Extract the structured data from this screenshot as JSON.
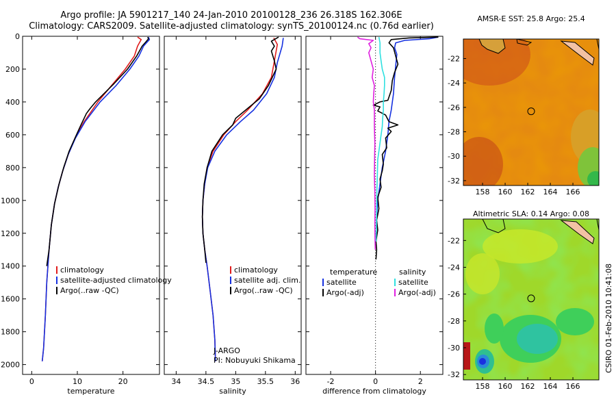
{
  "title": {
    "line1": "Argo profile: JA 5901217_140 24-Jan-2010 20100128_236 26.318S 162.306E",
    "line2": "Climatology: CARS2009. Satellite-adjusted climatology: synTS_20100124.nc (0.76d earlier)"
  },
  "side_label": "CSIRO 01-Feb-2010 10:41:08",
  "colors": {
    "clim": "#e01b1b",
    "sat": "#1530e0",
    "argo": "#000000",
    "sat_s": "#2fe0e0",
    "argo_s": "#e020e0"
  },
  "chart_data": [
    {
      "type": "line",
      "id": "temperature",
      "xlabel": "temperature",
      "xlim": [
        -2,
        28
      ],
      "xticks": [
        0,
        10,
        20
      ],
      "ylim": [
        2060,
        0
      ],
      "yticks": [
        0,
        200,
        400,
        600,
        800,
        1000,
        1200,
        1400,
        1600,
        1800,
        2000
      ],
      "legend": [
        "climatology",
        "satellite-adjusted climatology",
        "Argo(..raw -QC)"
      ],
      "series": [
        {
          "name": "climatology",
          "color": "#e01b1b",
          "points": [
            [
              23.2,
              5
            ],
            [
              24.0,
              20
            ],
            [
              23.2,
              60
            ],
            [
              22.5,
              120
            ],
            [
              20.5,
              200
            ],
            [
              17.5,
              300
            ],
            [
              14.5,
              400
            ],
            [
              11.5,
              520
            ],
            [
              9.5,
              620
            ],
            [
              8.0,
              720
            ],
            [
              6.8,
              820
            ],
            [
              5.8,
              920
            ],
            [
              5.0,
              1020
            ],
            [
              4.3,
              1150
            ],
            [
              3.8,
              1300
            ],
            [
              3.3,
              1500
            ],
            [
              3.0,
              1700
            ],
            [
              2.6,
              1900
            ],
            [
              2.3,
              1980
            ]
          ]
        },
        {
          "name": "satellite-adjusted climatology",
          "color": "#1530e0",
          "points": [
            [
              25.6,
              5
            ],
            [
              25.8,
              20
            ],
            [
              24.5,
              60
            ],
            [
              23.5,
              120
            ],
            [
              21.5,
              200
            ],
            [
              18.5,
              300
            ],
            [
              15.0,
              400
            ],
            [
              11.7,
              520
            ],
            [
              9.6,
              620
            ],
            [
              8.0,
              720
            ],
            [
              6.8,
              820
            ],
            [
              5.8,
              920
            ],
            [
              5.0,
              1020
            ],
            [
              4.3,
              1150
            ],
            [
              3.8,
              1300
            ],
            [
              3.3,
              1500
            ],
            [
              3.0,
              1700
            ],
            [
              2.6,
              1900
            ],
            [
              2.3,
              1980
            ]
          ]
        },
        {
          "name": "Argo(..raw -QC)",
          "color": "#000000",
          "points": [
            [
              25.4,
              5
            ],
            [
              25.6,
              15
            ],
            [
              25.0,
              35
            ],
            [
              24.2,
              60
            ],
            [
              23.0,
              120
            ],
            [
              21.0,
              200
            ],
            [
              18.0,
              290
            ],
            [
              14.0,
              400
            ],
            [
              12.8,
              440
            ],
            [
              12.0,
              470
            ],
            [
              10.8,
              540
            ],
            [
              9.8,
              600
            ],
            [
              8.2,
              700
            ],
            [
              7.0,
              800
            ],
            [
              6.0,
              900
            ],
            [
              5.0,
              1020
            ],
            [
              4.3,
              1150
            ],
            [
              3.8,
              1300
            ],
            [
              3.3,
              1400
            ]
          ]
        }
      ]
    },
    {
      "type": "line",
      "id": "salinity",
      "xlabel": "salinity",
      "xlim": [
        33.8,
        36.1
      ],
      "xticks": [
        34,
        34.5,
        35,
        35.5,
        36
      ],
      "ylim": [
        2060,
        0
      ],
      "legend": [
        "climatology",
        "satellite adj. clim.",
        "Argo(..raw -QC)"
      ],
      "annotation": [
        "J-ARGO",
        "PI: Nobuyuki Shikama"
      ],
      "series": [
        {
          "name": "climatology",
          "color": "#e01b1b",
          "points": [
            [
              35.64,
              10
            ],
            [
              35.7,
              50
            ],
            [
              35.65,
              150
            ],
            [
              35.6,
              250
            ],
            [
              35.45,
              350
            ],
            [
              35.2,
              450
            ],
            [
              35.0,
              520
            ],
            [
              34.8,
              600
            ],
            [
              34.62,
              700
            ],
            [
              34.52,
              800
            ],
            [
              34.48,
              900
            ],
            [
              34.45,
              1000
            ],
            [
              34.44,
              1100
            ],
            [
              34.45,
              1200
            ],
            [
              34.48,
              1300
            ],
            [
              34.52,
              1400
            ],
            [
              34.57,
              1550
            ],
            [
              34.62,
              1700
            ],
            [
              34.65,
              1850
            ],
            [
              34.66,
              1980
            ]
          ]
        },
        {
          "name": "satellite adj. clim.",
          "color": "#1530e0",
          "points": [
            [
              35.8,
              10
            ],
            [
              35.78,
              60
            ],
            [
              35.7,
              160
            ],
            [
              35.65,
              250
            ],
            [
              35.52,
              350
            ],
            [
              35.3,
              450
            ],
            [
              35.08,
              520
            ],
            [
              34.85,
              600
            ],
            [
              34.65,
              700
            ],
            [
              34.53,
              800
            ],
            [
              34.48,
              900
            ],
            [
              34.45,
              1000
            ],
            [
              34.44,
              1100
            ],
            [
              34.45,
              1200
            ],
            [
              34.48,
              1300
            ],
            [
              34.52,
              1400
            ],
            [
              34.57,
              1550
            ],
            [
              34.62,
              1700
            ],
            [
              34.65,
              1850
            ],
            [
              34.66,
              1980
            ]
          ]
        },
        {
          "name": "Argo(..raw -QC)",
          "color": "#000000",
          "points": [
            [
              35.72,
              5
            ],
            [
              35.6,
              30
            ],
            [
              35.65,
              60
            ],
            [
              35.6,
              90
            ],
            [
              35.65,
              150
            ],
            [
              35.68,
              200
            ],
            [
              35.55,
              300
            ],
            [
              35.4,
              380
            ],
            [
              35.2,
              440
            ],
            [
              35.0,
              500
            ],
            [
              34.95,
              540
            ],
            [
              34.78,
              600
            ],
            [
              34.6,
              700
            ],
            [
              34.52,
              800
            ],
            [
              34.47,
              900
            ],
            [
              34.45,
              1000
            ],
            [
              34.44,
              1100
            ],
            [
              34.45,
              1200
            ],
            [
              34.48,
              1300
            ],
            [
              34.5,
              1380
            ]
          ]
        }
      ]
    },
    {
      "type": "line",
      "id": "difference",
      "xlabel": "difference from climatology",
      "xlim": [
        -3.1,
        3.0
      ],
      "xticks": [
        -2,
        0,
        2
      ],
      "ylim": [
        2060,
        0
      ],
      "legend_temperature": {
        "heading": "temperature",
        "items": [
          "satellite",
          "Argo(-adj)"
        ]
      },
      "legend_salinity": {
        "heading": "salinity",
        "items": [
          "satellite",
          "Argo(-adj)"
        ]
      },
      "series": [
        {
          "name": "temperature satellite",
          "color": "#1530e0",
          "points": [
            [
              2.8,
              5
            ],
            [
              2.4,
              15
            ],
            [
              1.3,
              25
            ],
            [
              0.9,
              40
            ],
            [
              0.85,
              70
            ],
            [
              0.95,
              110
            ],
            [
              0.9,
              180
            ],
            [
              0.85,
              250
            ],
            [
              0.8,
              350
            ],
            [
              0.7,
              450
            ],
            [
              0.6,
              520
            ],
            [
              0.55,
              600
            ],
            [
              0.45,
              700
            ],
            [
              0.3,
              800
            ],
            [
              0.2,
              900
            ],
            [
              0.1,
              1000
            ],
            [
              0.05,
              1100
            ],
            [
              0.02,
              1250
            ]
          ]
        },
        {
          "name": "temperature Argo(-adj)",
          "color": "#000000",
          "points": [
            [
              2.8,
              5
            ],
            [
              1.5,
              10
            ],
            [
              0.7,
              20
            ],
            [
              0.6,
              40
            ],
            [
              0.8,
              70
            ],
            [
              0.9,
              120
            ],
            [
              1.0,
              170
            ],
            [
              0.85,
              220
            ],
            [
              0.75,
              270
            ],
            [
              0.7,
              330
            ],
            [
              0.55,
              390
            ],
            [
              0.2,
              400
            ],
            [
              -0.1,
              420
            ],
            [
              0.2,
              430
            ],
            [
              0.1,
              455
            ],
            [
              0.45,
              480
            ],
            [
              0.6,
              520
            ],
            [
              1.0,
              540
            ],
            [
              0.55,
              560
            ],
            [
              0.7,
              580
            ],
            [
              0.45,
              620
            ],
            [
              0.5,
              680
            ],
            [
              0.3,
              720
            ],
            [
              0.35,
              780
            ],
            [
              0.3,
              820
            ],
            [
              0.2,
              870
            ],
            [
              0.25,
              920
            ],
            [
              0.1,
              980
            ],
            [
              0.15,
              1050
            ],
            [
              0.05,
              1120
            ],
            [
              0.1,
              1180
            ],
            [
              0.02,
              1250
            ],
            [
              0.05,
              1300
            ],
            [
              0.02,
              1360
            ]
          ]
        },
        {
          "name": "salinity satellite",
          "color": "#2fe0e0",
          "points": [
            [
              0.15,
              5
            ],
            [
              0.2,
              40
            ],
            [
              0.2,
              100
            ],
            [
              0.25,
              150
            ],
            [
              0.3,
              200
            ],
            [
              0.4,
              250
            ],
            [
              0.4,
              300
            ],
            [
              0.38,
              350
            ],
            [
              0.35,
              400
            ],
            [
              0.35,
              450
            ],
            [
              0.32,
              500
            ],
            [
              0.3,
              550
            ],
            [
              0.25,
              600
            ],
            [
              0.2,
              650
            ],
            [
              0.15,
              700
            ],
            [
              0.1,
              750
            ],
            [
              0.08,
              850
            ],
            [
              0.06,
              950
            ],
            [
              0.05,
              1050
            ],
            [
              0.04,
              1150
            ],
            [
              0.02,
              1250
            ]
          ]
        },
        {
          "name": "salinity Argo(-adj)",
          "color": "#e020e0",
          "points": [
            [
              -0.8,
              5
            ],
            [
              -0.7,
              15
            ],
            [
              -0.1,
              25
            ],
            [
              -0.3,
              45
            ],
            [
              -0.2,
              70
            ],
            [
              -0.3,
              100
            ],
            [
              -0.2,
              150
            ],
            [
              -0.1,
              200
            ],
            [
              -0.15,
              250
            ],
            [
              -0.05,
              300
            ],
            [
              -0.08,
              350
            ],
            [
              -0.1,
              400
            ],
            [
              -0.05,
              450
            ],
            [
              -0.05,
              550
            ],
            [
              -0.03,
              650
            ],
            [
              -0.04,
              750
            ],
            [
              -0.05,
              850
            ],
            [
              -0.03,
              950
            ],
            [
              -0.02,
              1050
            ],
            [
              -0.03,
              1150
            ],
            [
              -0.02,
              1250
            ],
            [
              -0.01,
              1300
            ]
          ]
        }
      ]
    }
  ],
  "maps": [
    {
      "id": "sst",
      "title": "AMSR-E SST: 25.8 Argo: 25.4",
      "xticks": [
        "158",
        "160",
        "162",
        "164",
        "166"
      ],
      "yticks": [
        "-22",
        "-24",
        "-26",
        "-28",
        "-30",
        "-32"
      ],
      "lon_range": [
        156.3,
        168.3
      ],
      "lat_range": [
        -32.4,
        -20.4
      ],
      "marker": {
        "lon": 162.3,
        "lat": -26.32
      }
    },
    {
      "id": "sla",
      "title": "Altimetric SLA: 0.14 Argo: 0.08",
      "xticks": [
        "158",
        "160",
        "162",
        "164",
        "166"
      ],
      "yticks": [
        "-22",
        "-24",
        "-26",
        "-28",
        "-30",
        "-32"
      ],
      "lon_range": [
        156.3,
        168.3
      ],
      "lat_range": [
        -32.4,
        -20.4
      ],
      "marker": {
        "lon": 162.3,
        "lat": -26.32
      }
    }
  ]
}
